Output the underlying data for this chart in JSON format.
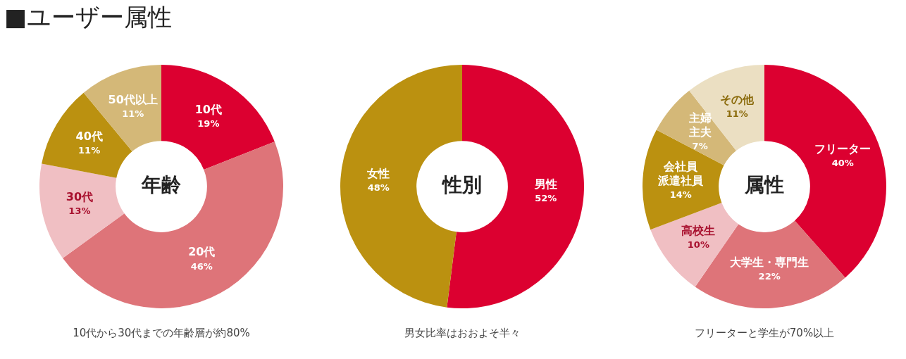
{
  "chart_data": [
    {
      "type": "other",
      "title": "■ユーザー属性"
    },
    {
      "type": "donut",
      "title": "年齢",
      "categories": [
        "10代",
        "20代",
        "30代",
        "40代",
        "50代以上"
      ],
      "values": [
        19,
        46,
        13,
        11,
        11
      ],
      "value_labels": [
        "19%",
        "46%",
        "13%",
        "11%",
        "11%"
      ],
      "colors": [
        "#dc0030",
        "#de7479",
        "#f0bfc3",
        "#bb9110",
        "#d4b878"
      ],
      "annotations": [
        "10代から30代までの年齢層が約80%"
      ]
    },
    {
      "type": "donut",
      "title": "性別",
      "categories": [
        "男性",
        "女性"
      ],
      "values": [
        52,
        48
      ],
      "value_labels": [
        "52%",
        "48%"
      ],
      "colors": [
        "#dc0030",
        "#bb9110"
      ],
      "annotations": [
        "男女比率はおおよそ半々"
      ]
    },
    {
      "type": "donut",
      "title": "属性",
      "categories": [
        "フリーター",
        "大学生・専門生",
        "高校生",
        "会社員派遣社員",
        "主婦主夫",
        "その他"
      ],
      "values": [
        40,
        22,
        10,
        14,
        7,
        11
      ],
      "value_labels": [
        "40%",
        "22%",
        "10%",
        "14%",
        "7%",
        "11%"
      ],
      "colors": [
        "#dc0030",
        "#de7479",
        "#f0bfc3",
        "#bb9110",
        "#d4b878",
        "#ebdfc2"
      ],
      "annotations": [
        "フリーターと学生が70%以上"
      ]
    }
  ]
}
